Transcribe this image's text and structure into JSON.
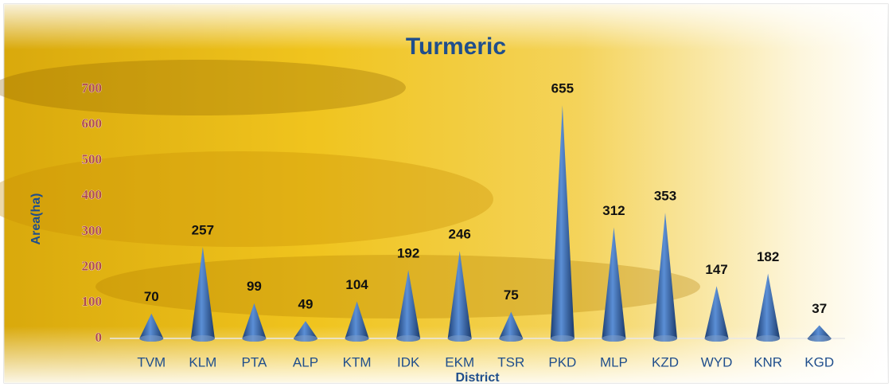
{
  "chart_data": {
    "type": "cone",
    "title": "Turmeric",
    "y_label": "Area(ha)",
    "x_label": "District",
    "categories": [
      "TVM",
      "KLM",
      "PTA",
      "ALP",
      "KTM",
      "IDK",
      "EKM",
      "TSR",
      "PKD",
      "MLP",
      "KZD",
      "WYD",
      "KNR",
      "KGD"
    ],
    "values": [
      70,
      257,
      99,
      49,
      104,
      192,
      246,
      75,
      655,
      312,
      353,
      147,
      182,
      37
    ],
    "color": "#2f5f9e",
    "ylim": [
      0,
      700
    ],
    "yticks": [
      0,
      100,
      200,
      300,
      400,
      500,
      600,
      700
    ]
  }
}
